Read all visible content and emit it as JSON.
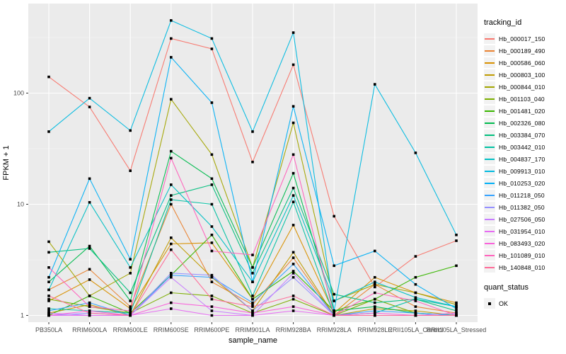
{
  "figure": {
    "background": "#ffffff",
    "panel_background": "#ebebeb",
    "grid_major_color": "#ffffff",
    "grid_minor_color": "#f7f7f7",
    "tick_label_color": "#4d4d4d",
    "axis_title_color": "#000000",
    "legend_key_background": "#f2f2f2"
  },
  "chart_data": {
    "type": "line",
    "title": "",
    "xlabel": "sample_name",
    "ylabel": "FPKM + 1",
    "yscale": "log10",
    "yticks": [
      1,
      10,
      100
    ],
    "ytick_labels": [
      "1",
      "10",
      "100"
    ],
    "yminor": [
      3.162,
      31.62,
      316.2
    ],
    "ylim": [
      0.95,
      600
    ],
    "grid": true,
    "point_shape": "square",
    "point_color": "#000000",
    "legend_position": "right",
    "categories": [
      "PB350LA",
      "RRIM600LA",
      "RRIM600LE",
      "RRIM600SE",
      "RRIM600PE",
      "RRIM901LA",
      "RRIM928BA",
      "RRIM928LA",
      "RRIM928LE",
      "RRII105LA_Control",
      "RRII105LA_Stressed"
    ],
    "series": [
      {
        "name": "Hb_000017_150",
        "color": "#F8766D",
        "values": [
          140,
          75,
          20,
          310,
          250,
          24,
          180,
          7.8,
          1.8,
          3.4,
          4.7
        ]
      },
      {
        "name": "Hb_000189_490",
        "color": "#EA8331",
        "values": [
          1.7,
          2.6,
          1.2,
          10,
          2.0,
          1.25,
          3.3,
          1.0,
          1.9,
          1.2,
          1.05
        ]
      },
      {
        "name": "Hb_000586_060",
        "color": "#D89000",
        "values": [
          1.35,
          2.1,
          1.15,
          4.4,
          4.5,
          1.4,
          6.5,
          1.05,
          2.2,
          1.6,
          1.3
        ]
      },
      {
        "name": "Hb_000803_100",
        "color": "#C09B00",
        "values": [
          1.05,
          1.25,
          1.0,
          5.0,
          2.2,
          1.1,
          3.7,
          1.0,
          1.15,
          1.1,
          1.0
        ]
      },
      {
        "name": "Hb_000844_010",
        "color": "#A3A500",
        "values": [
          4.6,
          1.5,
          2.4,
          88,
          28,
          2.7,
          54,
          1.35,
          1.9,
          1.6,
          1.25
        ]
      },
      {
        "name": "Hb_001103_040",
        "color": "#7CAE00",
        "values": [
          1.4,
          1.2,
          1.05,
          1.6,
          1.5,
          1.05,
          1.4,
          1.0,
          1.4,
          1.05,
          1.0
        ]
      },
      {
        "name": "Hb_001481_020",
        "color": "#39B600",
        "values": [
          1.0,
          1.5,
          1.05,
          2.3,
          5.3,
          1.4,
          2.5,
          1.1,
          1.4,
          2.2,
          2.8
        ]
      },
      {
        "name": "Hb_002326_080",
        "color": "#00BB4E",
        "values": [
          2.0,
          4.2,
          1.35,
          30,
          17,
          2.7,
          19,
          1.1,
          1.2,
          1.05,
          1.0
        ]
      },
      {
        "name": "Hb_003384_070",
        "color": "#00BF7D",
        "values": [
          3.7,
          4.0,
          1.6,
          12,
          15,
          2.4,
          14,
          1.55,
          1.3,
          1.4,
          1.1
        ]
      },
      {
        "name": "Hb_003442_010",
        "color": "#00C1A3",
        "values": [
          1.15,
          1.1,
          1.05,
          11,
          10,
          1.5,
          10.5,
          1.0,
          1.05,
          1.4,
          1.2
        ]
      },
      {
        "name": "Hb_004837_170",
        "color": "#00BFC4",
        "values": [
          1.7,
          10.4,
          2.7,
          15,
          6.3,
          2.0,
          12,
          1.35,
          2.0,
          1.45,
          1.2
        ]
      },
      {
        "name": "Hb_009913_010",
        "color": "#00BAE0",
        "values": [
          45,
          90,
          46,
          450,
          310,
          45,
          350,
          1.1,
          120,
          29,
          5.3
        ]
      },
      {
        "name": "Hb_010253_020",
        "color": "#00B0F6",
        "values": [
          2.2,
          17,
          3.2,
          210,
          82,
          2.0,
          76,
          2.8,
          3.8,
          1.9,
          1.15
        ]
      },
      {
        "name": "Hb_011218_050",
        "color": "#35A2FF",
        "values": [
          1.1,
          1.3,
          1.0,
          2.3,
          2.2,
          1.3,
          2.9,
          1.0,
          1.1,
          1.05,
          1.0
        ]
      },
      {
        "name": "Hb_011382_050",
        "color": "#9590FF",
        "values": [
          1.0,
          1.05,
          1.0,
          2.4,
          2.3,
          1.1,
          2.2,
          1.0,
          1.0,
          1.0,
          1.0
        ]
      },
      {
        "name": "Hb_027506_050",
        "color": "#C77CFF",
        "values": [
          1.05,
          1.0,
          1.0,
          2.2,
          1.1,
          1.0,
          2.4,
          1.0,
          1.0,
          1.0,
          1.05
        ]
      },
      {
        "name": "Hb_031954_010",
        "color": "#E76BF3",
        "values": [
          1.0,
          1.0,
          1.0,
          1.15,
          1.0,
          1.0,
          1.1,
          1.0,
          1.0,
          1.0,
          1.0
        ]
      },
      {
        "name": "Hb_083493_020",
        "color": "#FA62DB",
        "values": [
          1.0,
          1.1,
          1.0,
          1.3,
          1.2,
          1.05,
          1.2,
          1.0,
          1.05,
          1.0,
          1.0
        ]
      },
      {
        "name": "Hb_101089_010",
        "color": "#FF62BC",
        "values": [
          2.7,
          1.2,
          1.1,
          26,
          3.8,
          3.5,
          28,
          1.0,
          1.6,
          1.35,
          1.0
        ]
      },
      {
        "name": "Hb_140848_010",
        "color": "#FF6A98",
        "values": [
          1.5,
          1.05,
          1.0,
          3.9,
          1.4,
          1.2,
          1.5,
          1.0,
          1.0,
          1.0,
          1.0
        ]
      }
    ]
  },
  "legend": {
    "tracking_title": "tracking_id",
    "quant_title": "quant_status",
    "quant_items": [
      {
        "label": "OK",
        "shape": "black-square"
      }
    ]
  }
}
